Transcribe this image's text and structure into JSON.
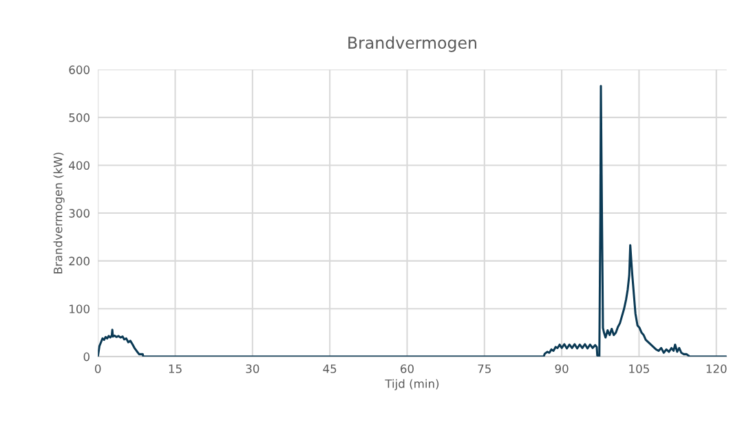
{
  "chart_data": {
    "type": "line",
    "title": "Brandvermogen",
    "xlabel": "Tijd (min)",
    "ylabel": "Brandvermogen (kW)",
    "xlim": [
      0,
      122
    ],
    "xticks": [
      0,
      15,
      30,
      45,
      60,
      75,
      90,
      105,
      120
    ],
    "ylim": [
      0,
      600
    ],
    "yticks": [
      0,
      100,
      200,
      300,
      400,
      500,
      600
    ],
    "grid": true,
    "marker": "none",
    "line_style": "solid",
    "series": [
      {
        "color": "#0b3a55",
        "x": [
          0,
          0.3,
          0.6,
          0.9,
          1.2,
          1.5,
          1.8,
          2.1,
          2.4,
          2.7,
          2.8,
          2.9,
          3.2,
          3.6,
          4.0,
          4.4,
          4.8,
          5.1,
          5.5,
          5.9,
          6.3,
          6.7,
          7.1,
          7.5,
          8.0,
          8.7,
          8.8,
          20,
          40,
          60,
          80,
          86.5,
          86.7,
          87.2,
          87.6,
          88.0,
          88.4,
          88.8,
          89.2,
          89.6,
          90.0,
          90.5,
          91.0,
          91.5,
          92.0,
          92.5,
          93.0,
          93.5,
          94.0,
          94.5,
          95.0,
          95.5,
          96.0,
          96.5,
          96.8,
          96.9,
          97.3,
          97.5,
          97.6,
          97.8,
          98.0,
          98.2,
          98.5,
          98.9,
          99.3,
          99.7,
          100.1,
          100.5,
          100.9,
          101.3,
          101.7,
          102.1,
          102.5,
          102.8,
          103.1,
          103.3,
          103.5,
          103.7,
          104.0,
          104.3,
          104.7,
          105.1,
          105.5,
          105.9,
          106.3,
          106.8,
          107.3,
          107.8,
          108.3,
          108.8,
          109.3,
          109.8,
          110.3,
          110.8,
          111.3,
          111.7,
          112.0,
          112.4,
          112.8,
          113.2,
          113.7,
          114.2,
          114.6,
          114.8,
          116,
          122
        ],
        "values": [
          0,
          22,
          30,
          38,
          35,
          41,
          38,
          43,
          40,
          44,
          56,
          42,
          44,
          41,
          43,
          40,
          42,
          36,
          38,
          30,
          33,
          26,
          18,
          12,
          5,
          5,
          0,
          0,
          0,
          0,
          0,
          0,
          6,
          10,
          8,
          15,
          12,
          20,
          18,
          25,
          18,
          26,
          17,
          25,
          18,
          26,
          17,
          25,
          18,
          26,
          17,
          25,
          18,
          24,
          20,
          2,
          0,
          300,
          566,
          300,
          60,
          50,
          40,
          55,
          45,
          58,
          45,
          50,
          62,
          70,
          85,
          100,
          120,
          140,
          170,
          233,
          200,
          170,
          130,
          90,
          65,
          60,
          50,
          45,
          35,
          30,
          25,
          20,
          15,
          12,
          18,
          8,
          15,
          10,
          18,
          12,
          25,
          10,
          18,
          8,
          5,
          5,
          2,
          0,
          0,
          0
        ]
      }
    ]
  }
}
